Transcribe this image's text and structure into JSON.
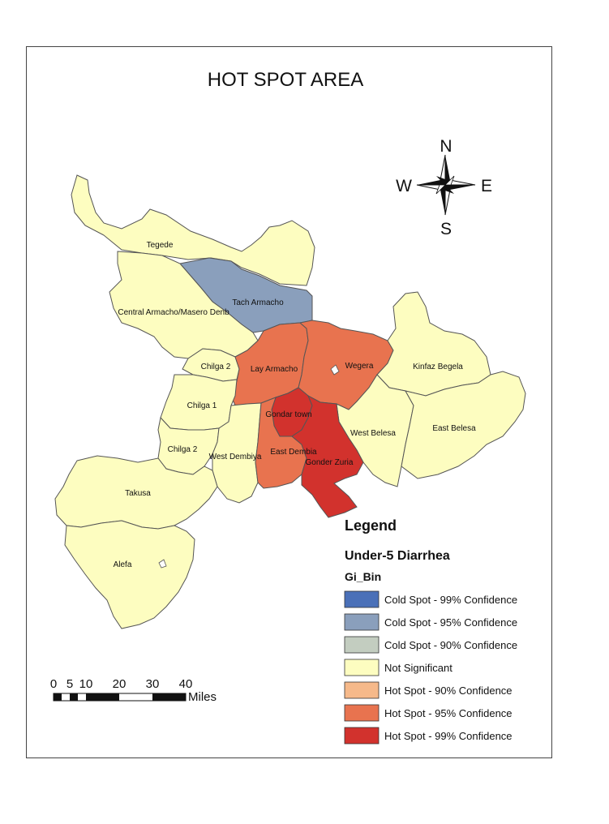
{
  "map": {
    "title": "HOT SPOT AREA",
    "compass": {
      "north": "N",
      "south": "S",
      "east": "E",
      "west": "W"
    },
    "legend": {
      "title": "Legend",
      "subtitle": "Under-5 Diarrhea",
      "field": "Gi_Bin",
      "items": [
        {
          "label": "Cold Spot - 99% Confidence",
          "color": "#4a70b8"
        },
        {
          "label": "Cold Spot - 95% Confidence",
          "color": "#8a9fbc"
        },
        {
          "label": "Cold Spot - 90% Confidence",
          "color": "#c3cdc0"
        },
        {
          "label": "Not Significant",
          "color": "#fdfdc0"
        },
        {
          "label": "Hot Spot - 90% Confidence",
          "color": "#f6b98a"
        },
        {
          "label": "Hot Spot - 95% Confidence",
          "color": "#e8734f"
        },
        {
          "label": "Hot Spot - 99% Confidence",
          "color": "#d2322d"
        }
      ]
    },
    "scale_bar": {
      "ticks": [
        "0",
        "5",
        "10",
        "20",
        "30",
        "40"
      ],
      "unit": "Miles"
    },
    "regions": [
      {
        "name": "Tegede",
        "class": "Not Significant"
      },
      {
        "name": "Tach Armacho",
        "class": "Cold Spot - 95% Confidence"
      },
      {
        "name": "Central Armacho/Masero Denb",
        "class": "Not Significant"
      },
      {
        "name": "Chilga 2",
        "class": "Not Significant"
      },
      {
        "name": "Lay Armacho",
        "class": "Hot Spot - 95% Confidence"
      },
      {
        "name": "Wegera",
        "class": "Hot Spot - 95% Confidence"
      },
      {
        "name": "Kinfaz Begela",
        "class": "Not Significant"
      },
      {
        "name": "Chilga 1",
        "class": "Not Significant"
      },
      {
        "name": "Gondar town",
        "class": "Hot Spot - 99% Confidence"
      },
      {
        "name": "West Belesa",
        "class": "Not Significant"
      },
      {
        "name": "East Belesa",
        "class": "Not Significant"
      },
      {
        "name": "Chilga 2",
        "class": "Not Significant"
      },
      {
        "name": "West Dembiya",
        "class": "Not Significant"
      },
      {
        "name": "East Dembia",
        "class": "Hot Spot - 95% Confidence"
      },
      {
        "name": "Gonder Zuria",
        "class": "Hot Spot - 99% Confidence"
      },
      {
        "name": "Takusa",
        "class": "Not Significant"
      },
      {
        "name": "Alefa",
        "class": "Not Significant"
      }
    ]
  }
}
